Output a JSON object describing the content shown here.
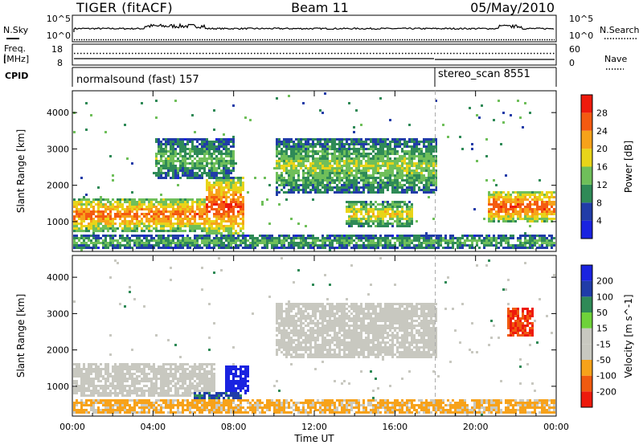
{
  "header": {
    "station": "TIGER (fitACF)",
    "beam": "Beam 11",
    "date": "05/May/2010"
  },
  "labels": {
    "nsky": "N.Sky",
    "nsearch": "N.Search",
    "freq_line1": "Freq.",
    "freq_line2": "[MHz]",
    "nave": "Nave",
    "cpid": "CPID",
    "nsky_ticks": [
      "10^5",
      "10^0"
    ],
    "freq_ticks": [
      "18",
      "8"
    ],
    "nave_ticks": [
      "60",
      "0"
    ]
  },
  "cpid": {
    "segments": [
      {
        "name": "normalsound (fast) 157",
        "start_hour": 0
      },
      {
        "name": "stereo_scan 8551",
        "start_hour": 18
      }
    ]
  },
  "colors": {
    "power": [
      "#1a23e0",
      "#213ca8",
      "#2f8a57",
      "#6fbf5a",
      "#e8d419",
      "#f7a21a",
      "#f45a11",
      "#ee1a0c"
    ],
    "velocity": [
      "#ee1a0c",
      "#f05a0f",
      "#f7a21a",
      "#c8c8c0",
      "#c8c8c0",
      "#6fd23a",
      "#2f8a57",
      "#203ca8",
      "#1a23e0"
    ],
    "velocity_gray": "#c8c8c0"
  },
  "chart_data": [
    {
      "type": "heatmap",
      "title": "Power",
      "panel": "power",
      "xlabel": "Time UT",
      "ylabel": "Slant Range [km]",
      "xlim": [
        0,
        24
      ],
      "ylim": [
        180,
        4600
      ],
      "x_ticks": [
        "00:00",
        "04:00",
        "08:00",
        "12:00",
        "16:00",
        "20:00",
        "00:00"
      ],
      "y_ticks": [
        1000,
        2000,
        3000,
        4000
      ],
      "colorbar": {
        "label": "Power [dB]",
        "ticks": [
          4,
          8,
          12,
          16,
          20,
          24,
          28
        ],
        "range": [
          0,
          32
        ]
      },
      "features": [
        {
          "band": "main echo",
          "hours": [
            0,
            7.5
          ],
          "range_km": [
            750,
            1700
          ],
          "power_db": 26
        },
        {
          "band": "main echo rising",
          "hours": [
            6.5,
            8.5
          ],
          "range_km": [
            600,
            2300
          ],
          "power_db": 28
        },
        {
          "band": "upper scatter",
          "hours": [
            4,
            8
          ],
          "range_km": [
            2200,
            3300
          ],
          "power_db": 14
        },
        {
          "band": "midnight scatter",
          "hours": [
            10,
            18
          ],
          "range_km": [
            1800,
            3300
          ],
          "power_db": 16
        },
        {
          "band": "afternoon echo",
          "hours": [
            13.5,
            16.8
          ],
          "range_km": [
            900,
            1600
          ],
          "power_db": 20
        },
        {
          "band": "evening echo",
          "hours": [
            20.5,
            24
          ],
          "range_km": [
            1000,
            1900
          ],
          "power_db": 28
        },
        {
          "band": "ground scatter",
          "hours": [
            0,
            24
          ],
          "range_km": [
            300,
            650
          ],
          "power_db": 14
        }
      ]
    },
    {
      "type": "heatmap",
      "title": "Velocity",
      "panel": "velocity",
      "xlabel": "Time UT",
      "ylabel": "Slant Range [km]",
      "xlim": [
        0,
        24
      ],
      "ylim": [
        180,
        4600
      ],
      "x_ticks": [
        "00:00",
        "04:00",
        "08:00",
        "12:00",
        "16:00",
        "20:00",
        "00:00"
      ],
      "y_ticks": [
        1000,
        2000,
        3000,
        4000
      ],
      "colorbar": {
        "label": "Velocity [m s^-1]",
        "ticks": [
          -200,
          -100,
          -50,
          -15,
          15,
          50,
          100,
          200
        ]
      },
      "features": [
        {
          "band": "main echo",
          "hours": [
            0,
            7
          ],
          "range_km": [
            750,
            1700
          ],
          "velocity_ms": 0
        },
        {
          "band": "positive flow",
          "hours": [
            7.5,
            8.7
          ],
          "range_km": [
            800,
            1600
          ],
          "velocity_ms": 200
        },
        {
          "band": "positive flow low",
          "hours": [
            6,
            8.5
          ],
          "range_km": [
            500,
            900
          ],
          "velocity_ms": 60
        },
        {
          "band": "midnight scatter",
          "hours": [
            10,
            18
          ],
          "range_km": [
            1800,
            3300
          ],
          "velocity_ms": 0
        },
        {
          "band": "evening negative",
          "hours": [
            21.5,
            22.8
          ],
          "range_km": [
            2400,
            3200
          ],
          "velocity_ms": -200
        },
        {
          "band": "near range flow",
          "hours": [
            0,
            24
          ],
          "range_km": [
            300,
            650
          ],
          "velocity_ms": -60
        }
      ]
    }
  ]
}
